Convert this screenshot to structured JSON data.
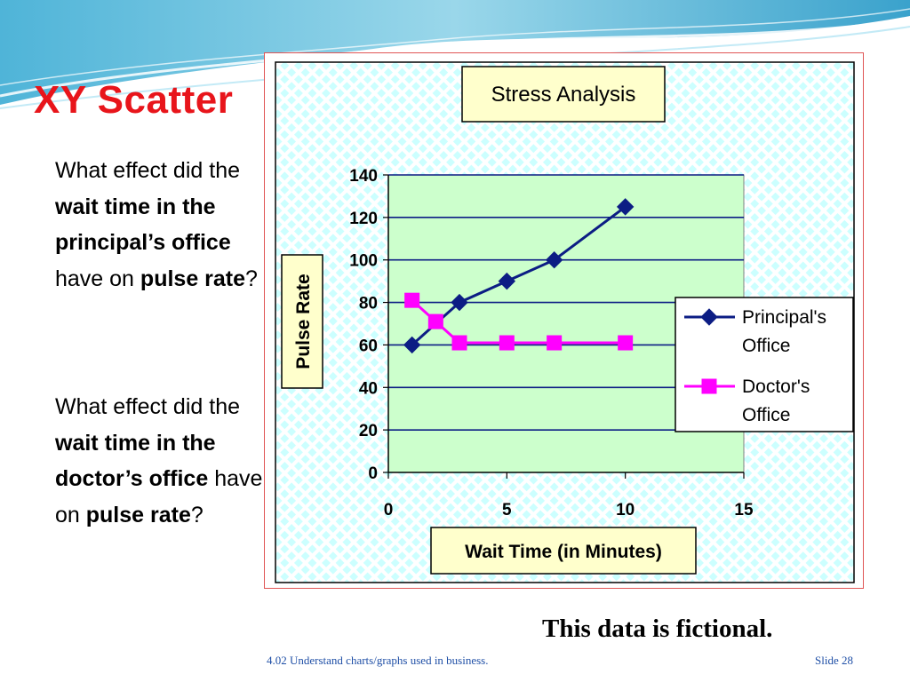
{
  "slide": {
    "title": "XY Scatter",
    "question1": {
      "parts": [
        {
          "text": "What effect did the ",
          "bold": false
        },
        {
          "text": "wait time in the principal’s office",
          "bold": true
        },
        {
          "text": " have on ",
          "bold": false
        },
        {
          "text": "pulse rate",
          "bold": true
        },
        {
          "text": "?",
          "bold": false
        }
      ]
    },
    "question2": {
      "parts": [
        {
          "text": "What effect did the ",
          "bold": false
        },
        {
          "text": "wait time in the doctor’s office",
          "bold": true
        },
        {
          "text": " have on ",
          "bold": false
        },
        {
          "text": "pulse rate",
          "bold": true
        },
        {
          "text": "?",
          "bold": false
        }
      ]
    },
    "note": "This data is fictional.",
    "footer": "4.02 Understand charts/graphs used in business.",
    "slide_number": "Slide 28"
  },
  "colors": {
    "title": "#e8151b",
    "plot_area": "#ccffcc",
    "chart_background_dots": "#ccffff",
    "title_box": "#ffffcc",
    "series_principal": "#0c1d84",
    "series_doctor": "#ff00ff",
    "footer": "#1f4fa6"
  },
  "chart_data": {
    "type": "scatter",
    "title": "Stress Analysis",
    "xlabel": "Wait Time (in Minutes)",
    "ylabel": "Pulse Rate",
    "xlim": [
      0,
      15
    ],
    "ylim": [
      0,
      140
    ],
    "xticks": [
      0,
      5,
      10,
      15
    ],
    "yticks": [
      0,
      20,
      40,
      60,
      80,
      100,
      120,
      140
    ],
    "grid": "horizontal",
    "legend_position": "right",
    "series": [
      {
        "name": "Principal's Office",
        "legend_lines": [
          "Principal's",
          "Office"
        ],
        "marker": "diamond",
        "x": [
          1,
          3,
          5,
          7,
          10
        ],
        "y": [
          60,
          80,
          90,
          100,
          125
        ]
      },
      {
        "name": "Doctor's Office",
        "legend_lines": [
          "Doctor's",
          "Office"
        ],
        "marker": "square",
        "x": [
          1,
          2,
          3,
          5,
          7,
          10
        ],
        "y": [
          81,
          71,
          61,
          61,
          61,
          61
        ]
      }
    ]
  }
}
